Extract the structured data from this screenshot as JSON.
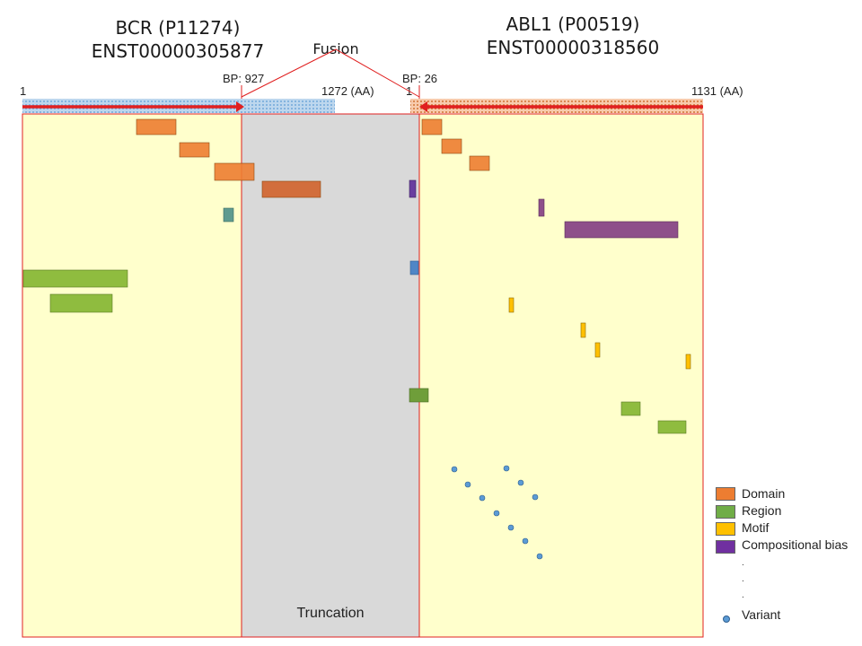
{
  "titles": {
    "left_gene": "BCR (P11274)",
    "left_transcript": "ENST00000305877",
    "right_gene": "ABL1 (P00519)",
    "right_transcript": "ENST00000318560",
    "fusion": "Fusion"
  },
  "axis_labels": {
    "left_start": "1",
    "left_breakpoint": "BP: 927",
    "left_end": "1272 (AA)",
    "right_start": "1",
    "right_breakpoint": "BP: 26",
    "right_end": "1131 (AA)"
  },
  "truncation_label": "Truncation",
  "colors": {
    "domain": "#ed7d31",
    "region": "#70ad47",
    "motif": "#ffc000",
    "compositional_bias": "#7030a0",
    "variant": "#5b9bd5",
    "panel_yellow": "#ffffcc",
    "truncation_gray": "#d9d9d9",
    "outline_red": "#e02020",
    "bcr_bar": "#9dc3e6",
    "abl_bar": "#f4b183"
  },
  "legend": [
    {
      "label": "Domain",
      "color": "#ed7d31"
    },
    {
      "label": "Region",
      "color": "#70ad47"
    },
    {
      "label": "Motif",
      "color": "#ffc000"
    },
    {
      "label": "Compositional bias",
      "color": "#7030a0"
    }
  ],
  "legend_variant": "Variant",
  "legend_ellipsis": ".",
  "features": {
    "bcr": [
      {
        "type": "domain",
        "start": 210,
        "end": 280
      },
      {
        "type": "domain",
        "start": 285,
        "end": 335
      },
      {
        "type": "domain",
        "start": 345,
        "end": 415
      },
      {
        "type": "domain",
        "start": 435,
        "end": 535
      },
      {
        "type": "region",
        "start": 1,
        "end": 185
      },
      {
        "type": "region",
        "start": 50,
        "end": 158
      },
      {
        "type": "region_teal",
        "start": 355,
        "end": 372
      }
    ],
    "abl1": [
      {
        "type": "domain",
        "start": 11,
        "end": 48
      },
      {
        "type": "domain",
        "start": 60,
        "end": 96
      },
      {
        "type": "domain",
        "start": 115,
        "end": 152
      },
      {
        "type": "compositional_bias",
        "start": 1,
        "end": 10
      },
      {
        "type": "compositional_bias",
        "start": 222,
        "end": 233
      },
      {
        "type": "compositional_bias",
        "start": 257,
        "end": 464
      },
      {
        "type": "region_blue",
        "start": 1,
        "end": 14
      },
      {
        "type": "motif",
        "start": 163,
        "end": 172
      },
      {
        "type": "motif",
        "start": 290,
        "end": 298
      },
      {
        "type": "motif",
        "start": 315,
        "end": 323
      },
      {
        "type": "motif",
        "start": 484,
        "end": 494
      },
      {
        "type": "region",
        "start": 1,
        "end": 34
      },
      {
        "type": "region",
        "start": 366,
        "end": 402
      },
      {
        "type": "region",
        "start": 434,
        "end": 487
      }
    ],
    "variants_abl1": [
      59,
      85,
      111,
      137,
      162,
      188,
      213,
      154,
      180,
      205
    ]
  }
}
